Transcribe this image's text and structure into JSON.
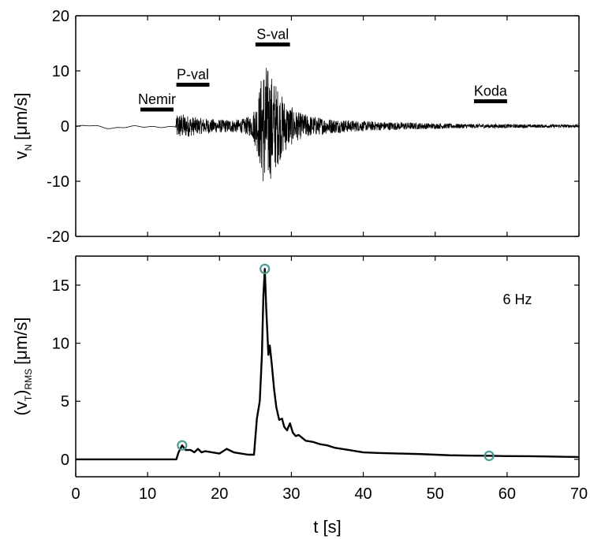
{
  "chart_data": [
    {
      "type": "line",
      "xlim": [
        0,
        70
      ],
      "ylim": [
        -20,
        20
      ],
      "yticks": [
        -20,
        -10,
        0,
        10,
        20
      ],
      "ylabel": {
        "main": "v",
        "sub": "N",
        "unit": "[μm/s]"
      },
      "grid": false,
      "phases": [
        {
          "label": "Nemir",
          "x_start": 9,
          "x_end": 13.6,
          "y": 3
        },
        {
          "label": "P-val",
          "x_start": 14,
          "x_end": 18.6,
          "y": 7.5
        },
        {
          "label": "S-val",
          "x_start": 25,
          "x_end": 29.8,
          "y": 14.8
        },
        {
          "label": "Koda",
          "x_start": 55.4,
          "x_end": 60,
          "y": 4.5
        }
      ],
      "envelope": [
        [
          0,
          0.1
        ],
        [
          10,
          0.2
        ],
        [
          13.9,
          0.3
        ],
        [
          14.1,
          2.5
        ],
        [
          15,
          2.2
        ],
        [
          17,
          1.5
        ],
        [
          20,
          1.2
        ],
        [
          23,
          1.2
        ],
        [
          24.5,
          2
        ],
        [
          25.3,
          5
        ],
        [
          25.8,
          9
        ],
        [
          26.3,
          12
        ],
        [
          27,
          10
        ],
        [
          27.8,
          8
        ],
        [
          28.5,
          6
        ],
        [
          29.5,
          4
        ],
        [
          31,
          2.5
        ],
        [
          33,
          1.8
        ],
        [
          35,
          1.4
        ],
        [
          40,
          0.9
        ],
        [
          45,
          0.7
        ],
        [
          50,
          0.5
        ],
        [
          55,
          0.4
        ],
        [
          60,
          0.35
        ],
        [
          65,
          0.3
        ],
        [
          70,
          0.3
        ]
      ]
    },
    {
      "type": "line",
      "xlim": [
        0,
        70
      ],
      "ylim": [
        -1.5,
        17.5
      ],
      "yticks": [
        0,
        5,
        10,
        15
      ],
      "xticks": [
        0,
        10,
        20,
        30,
        40,
        50,
        60,
        70
      ],
      "xlabel": "t [s]",
      "ylabel": {
        "main": "(v",
        "sub": "T",
        "close": ")",
        "sub2": "RMS",
        "unit": "[μm/s]"
      },
      "annotation": "6 Hz",
      "grid": false,
      "series": [
        {
          "x": [
            0,
            13,
            14,
            14.3,
            14.8,
            15.3,
            16,
            16.5,
            17,
            17.5,
            18,
            19,
            20,
            21,
            22,
            23,
            24,
            24.8,
            25.2,
            25.6,
            25.9,
            26.1,
            26.3,
            26.5,
            26.8,
            27.0,
            27.3,
            27.6,
            27.9,
            28.3,
            28.7,
            29.0,
            29.4,
            29.8,
            30.2,
            30.6,
            31,
            32,
            33,
            34,
            35,
            36,
            38,
            40,
            42,
            45,
            48,
            50,
            52,
            55,
            58,
            60,
            63,
            65,
            68,
            70
          ],
          "y": [
            0,
            0,
            0,
            0.6,
            1.2,
            0.8,
            0.8,
            0.6,
            0.9,
            0.6,
            0.7,
            0.6,
            0.5,
            0.9,
            0.6,
            0.5,
            0.4,
            0.4,
            3.5,
            5,
            9,
            14,
            16.4,
            13,
            9,
            9.8,
            8,
            6,
            4.5,
            3.4,
            3.5,
            2.8,
            2.5,
            3.1,
            2.3,
            2.0,
            2.1,
            1.6,
            1.5,
            1.3,
            1.2,
            1.0,
            0.8,
            0.6,
            0.55,
            0.5,
            0.45,
            0.4,
            0.35,
            0.32,
            0.3,
            0.28,
            0.27,
            0.25,
            0.22,
            0.2
          ]
        }
      ],
      "markers": [
        {
          "x": 14.8,
          "y": 1.2
        },
        {
          "x": 26.3,
          "y": 16.4
        },
        {
          "x": 57.5,
          "y": 0.3
        }
      ],
      "marker_color": "#4f9a94"
    }
  ]
}
